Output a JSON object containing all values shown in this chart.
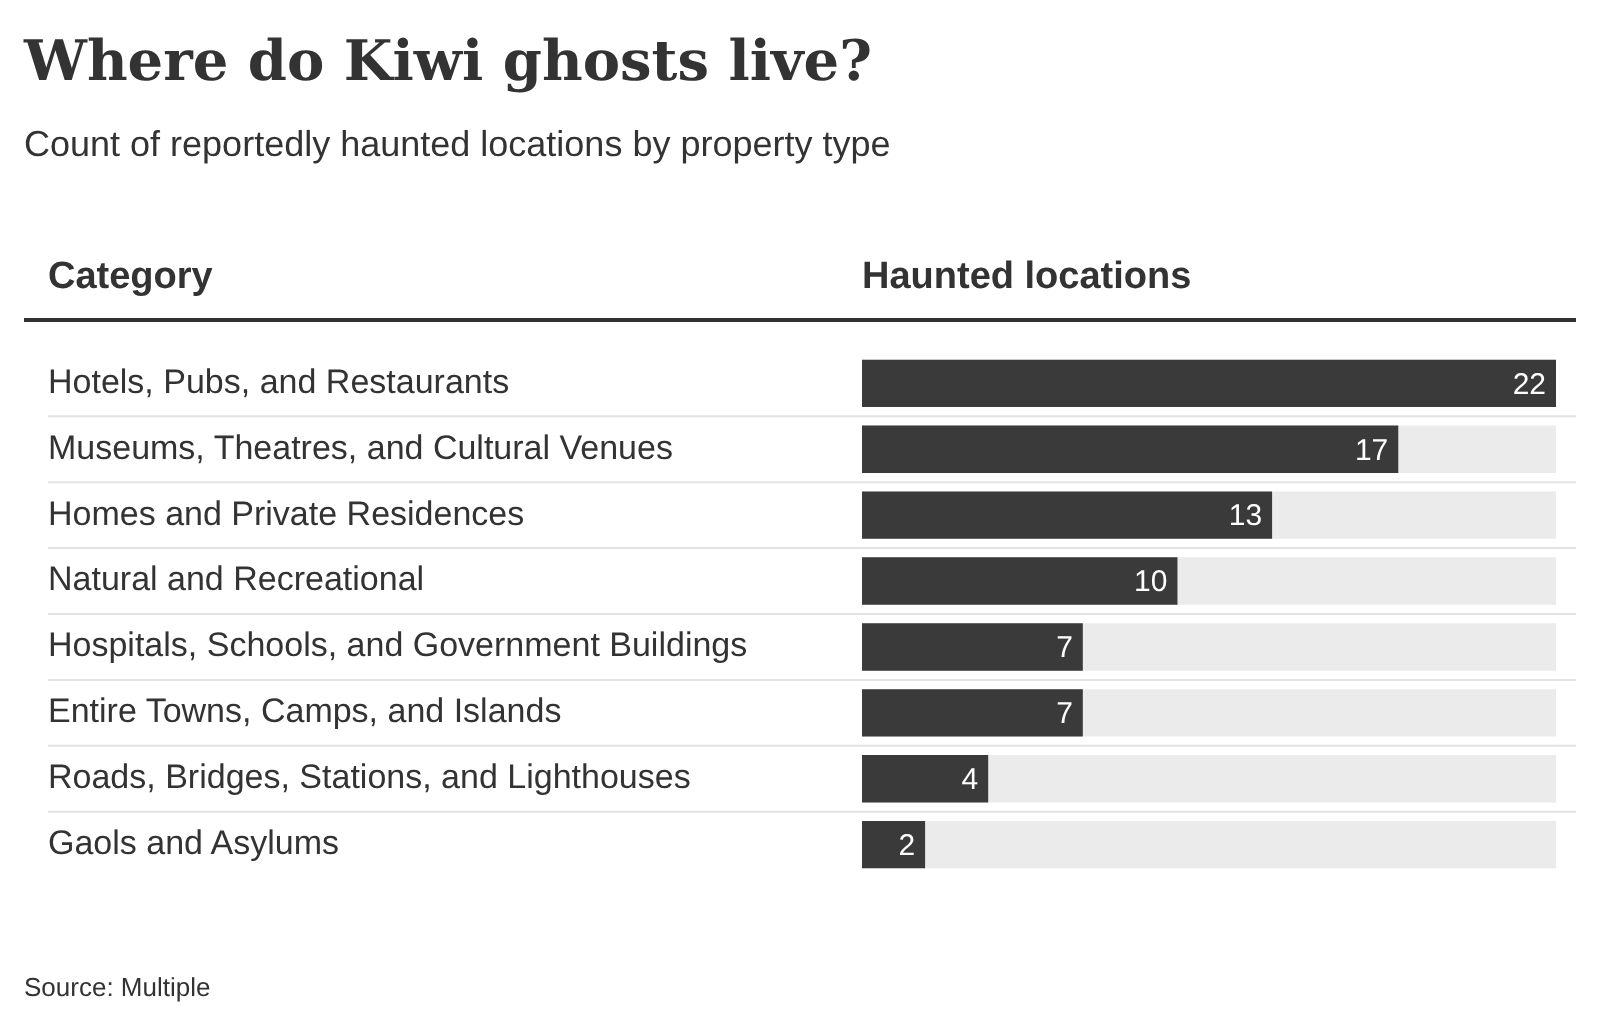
{
  "chart_data": {
    "type": "bar",
    "orientation": "horizontal",
    "title": "Where do Kiwi ghosts live?",
    "subtitle": "Count of reportedly haunted locations by property type",
    "ylabel": "Category",
    "xlabel": "Haunted locations",
    "categories": [
      "Hotels, Pubs, and Restaurants",
      "Museums, Theatres, and Cultural Venues",
      "Homes and Private Residences",
      "Natural and Recreational",
      "Hospitals, Schools, and Government Buildings",
      "Entire Towns, Camps, and Islands",
      "Roads, Bridges, Stations, and Lighthouses",
      "Gaols and Asylums"
    ],
    "values": [
      22,
      17,
      13,
      10,
      7,
      7,
      4,
      2
    ],
    "color": "#3a3a3a",
    "xlim": [
      0,
      22
    ],
    "tick_labels": "y",
    "data_labels": true,
    "legend": false,
    "annotations": [
      "Source: Multiple"
    ]
  }
}
